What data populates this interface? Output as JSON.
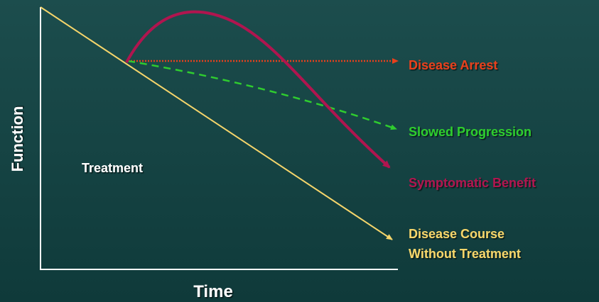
{
  "labels": {
    "y_axis": "Function",
    "x_axis": "Time",
    "region": "Treatment",
    "arrest": "Disease Arrest",
    "slowed": "Slowed Progression",
    "symptomatic": "Symptomatic Benefit",
    "course": [
      "Disease Course",
      "Without Treatment"
    ]
  }
}
